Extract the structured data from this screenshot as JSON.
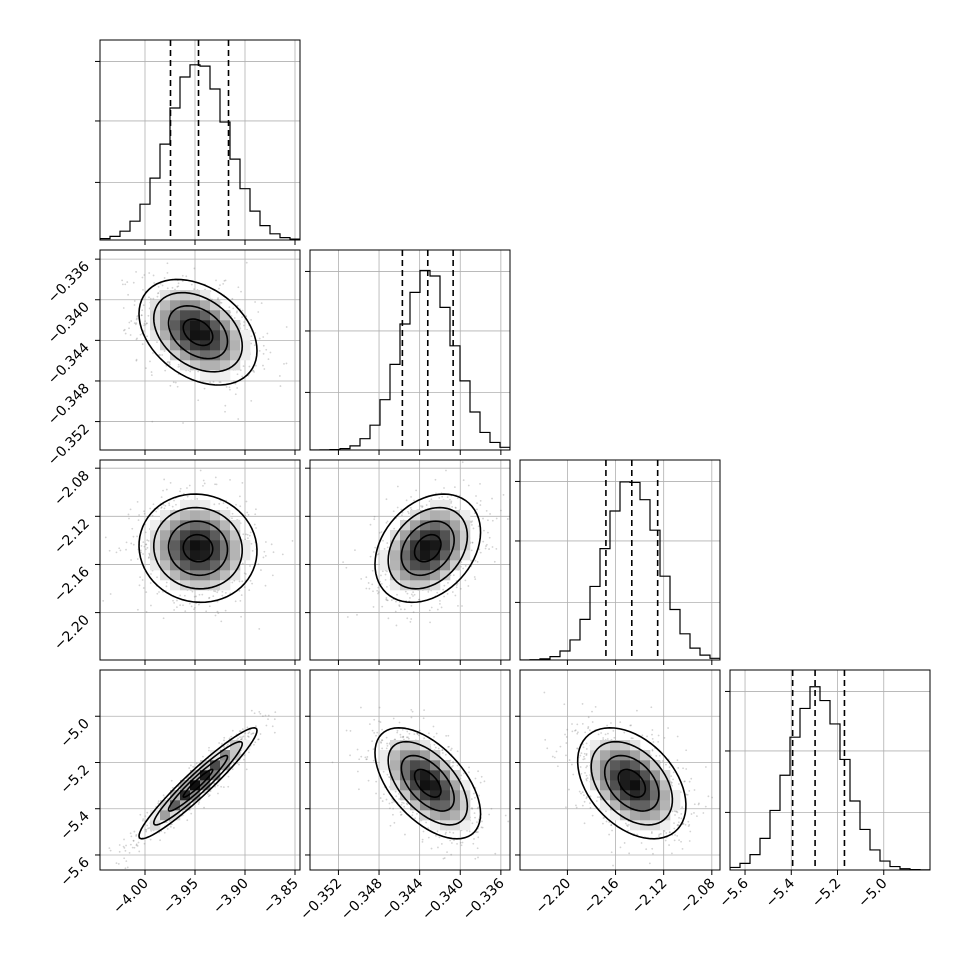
{
  "chart_data": {
    "type": "corner",
    "n_params": 4,
    "grid": true,
    "colors": {
      "marginal": "#000000",
      "density": "#000000",
      "scatter_points": "#808080",
      "contour": "#000000",
      "quantile": "#000000"
    },
    "parameters": [
      {
        "range": [
          -4.045,
          -3.845
        ],
        "ticks": [
          -4.0,
          -3.95,
          -3.9,
          -3.85
        ],
        "tick_labels": [
          "−4.00",
          "−3.95",
          "−3.90",
          "−3.85"
        ],
        "mean": -3.947,
        "sd": 0.0295,
        "quantiles": [
          -3.9745,
          -3.9465,
          -3.9165
        ]
      },
      {
        "range": [
          -0.3548,
          -0.3351
        ],
        "ticks": [
          -0.352,
          -0.348,
          -0.344,
          -0.34,
          -0.336
        ],
        "tick_labels": [
          "−0.352",
          "−0.348",
          "−0.344",
          "−0.340",
          "−0.336"
        ],
        "mean": -0.3432,
        "sd": 0.0026,
        "quantiles": [
          -0.3457,
          -0.3432,
          -0.3407
        ]
      },
      {
        "range": [
          -2.2394,
          -2.0732
        ],
        "ticks": [
          -2.2,
          -2.16,
          -2.12,
          -2.08
        ],
        "tick_labels": [
          "−2.20",
          "−2.16",
          "−2.12",
          "−2.08"
        ],
        "mean": -2.1465,
        "sd": 0.0225,
        "quantiles": [
          -2.168,
          -2.1465,
          -2.125
        ]
      },
      {
        "range": [
          -5.665,
          -4.8
        ],
        "ticks": [
          -5.6,
          -5.4,
          -5.2,
          -5.0
        ],
        "tick_labels": [
          "−5.6",
          "−5.4",
          "−5.2",
          "−5.0"
        ],
        "mean": -5.29,
        "sd": 0.12,
        "quantiles": [
          -5.394,
          -5.297,
          -5.17
        ]
      }
    ],
    "y_ticks": {
      "1": {
        "ticks": [
          -0.352,
          -0.348,
          -0.344,
          -0.34,
          -0.336
        ],
        "tick_labels": [
          "−0.352",
          "−0.348",
          "−0.344",
          "−0.340",
          "−0.336"
        ]
      },
      "2": {
        "ticks": [
          -2.2,
          -2.16,
          -2.12,
          -2.08
        ],
        "tick_labels": [
          "−2.20",
          "−2.16",
          "−2.12",
          "−2.08"
        ]
      },
      "3": {
        "ticks": [
          -5.6,
          -5.4,
          -5.2,
          -5.0
        ],
        "tick_labels": [
          "−5.6",
          "−5.4",
          "−5.2",
          "−5.0"
        ]
      }
    },
    "correlations": {
      "1-0": -0.35,
      "2-0": -0.05,
      "2-1": 0.3,
      "3-0": 0.95,
      "3-1": -0.55,
      "3-2": -0.4
    },
    "contour_levels_sigma": [
      0.5,
      1.0,
      1.5,
      2.0
    ],
    "hist_bins": 20
  }
}
